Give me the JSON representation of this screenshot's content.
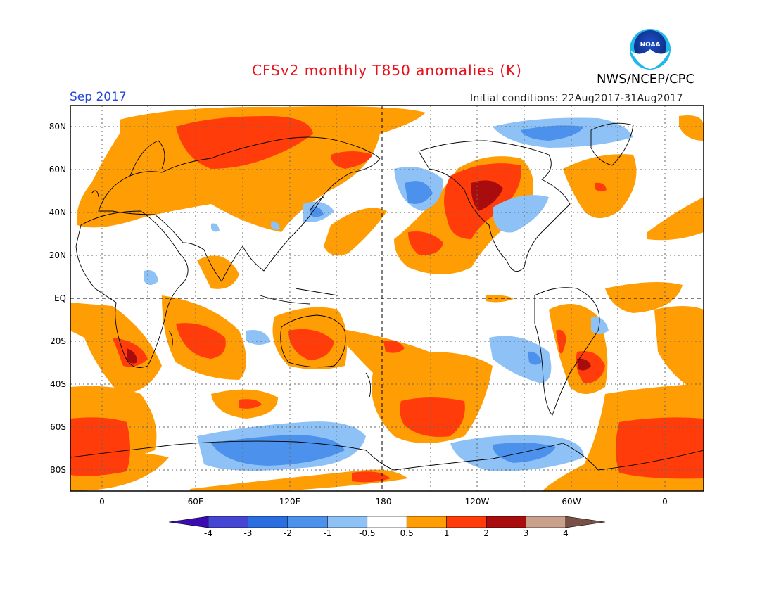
{
  "header": {
    "title": "CFSv2 monthly T850 anomalies (K)",
    "agency": "NWS/NCEP/CPC",
    "logo_text": "NOAA",
    "month": "Sep 2017",
    "initial_conditions": "Initial conditions: 22Aug2017-31Aug2017"
  },
  "map": {
    "lat_labels": [
      "80N",
      "60N",
      "40N",
      "20N",
      "EQ",
      "20S",
      "40S",
      "60S",
      "80S"
    ],
    "lon_labels": [
      "0",
      "60E",
      "120E",
      "180",
      "120W",
      "60W",
      "0"
    ]
  },
  "legend": {
    "labels": [
      "-4",
      "-3",
      "-2",
      "-1",
      "-0.5",
      "0.5",
      "1",
      "2",
      "3",
      "4"
    ],
    "colors": [
      "#3a0bb0",
      "#4646d4",
      "#2a6ee0",
      "#4c92ec",
      "#8ec2f6",
      "#ffffff",
      "#ff9d05",
      "#ff3c0a",
      "#a80c0c",
      "#c9a08c",
      "#7a5046"
    ]
  }
}
